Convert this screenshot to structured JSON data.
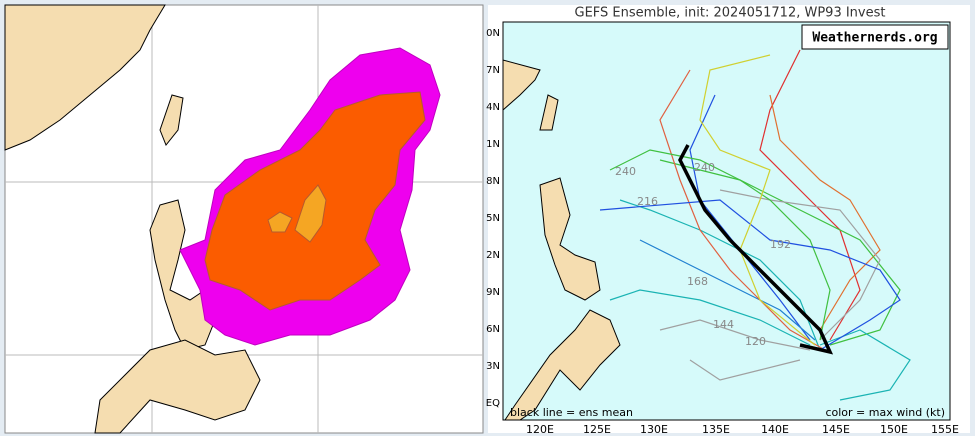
{
  "right_panel": {
    "title": "GEFS Ensemble, init: 2024051712, WP93 Invest",
    "watermark": "Weathernerds.org",
    "lon_labels": [
      "120E",
      "125E",
      "130E",
      "135E",
      "140E",
      "145E",
      "150E",
      "155E"
    ],
    "lat_labels": [
      "0N",
      "7N",
      "4N",
      "1N",
      "8N",
      "5N",
      "2N",
      "9N",
      "6N",
      "3N",
      "EQ"
    ],
    "track_hour_labels": [
      "240",
      "216",
      "240",
      "192",
      "168",
      "144",
      "120"
    ],
    "footer_left": "black line = ens mean",
    "footer_right": "color = max wind (kt)"
  }
}
